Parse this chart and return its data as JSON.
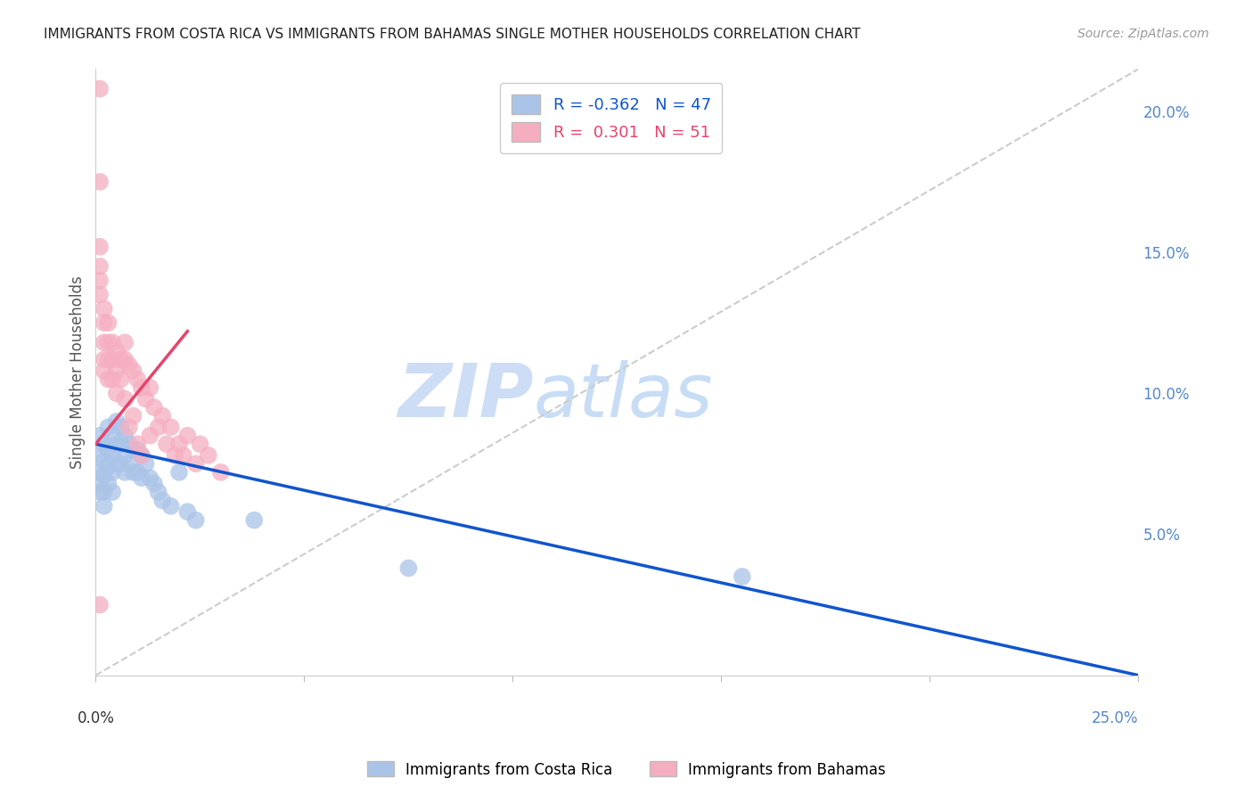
{
  "title": "IMMIGRANTS FROM COSTA RICA VS IMMIGRANTS FROM BAHAMAS SINGLE MOTHER HOUSEHOLDS CORRELATION CHART",
  "source": "Source: ZipAtlas.com",
  "ylabel": "Single Mother Households",
  "ylabel_right_ticks": [
    "20.0%",
    "15.0%",
    "10.0%",
    "5.0%"
  ],
  "ylabel_right_vals": [
    0.2,
    0.15,
    0.1,
    0.05
  ],
  "xlim": [
    0.0,
    0.25
  ],
  "ylim": [
    0.0,
    0.215
  ],
  "legend_blue_R": "-0.362",
  "legend_blue_N": "47",
  "legend_pink_R": "0.301",
  "legend_pink_N": "51",
  "blue_color": "#aac4e8",
  "pink_color": "#f5aec0",
  "blue_line_color": "#1155cc",
  "pink_line_color": "#e8436a",
  "diagonal_color": "#cccccc",
  "watermark_zip": "ZIP",
  "watermark_atlas": "atlas",
  "costa_rica_x": [
    0.001,
    0.001,
    0.001,
    0.001,
    0.001,
    0.002,
    0.002,
    0.002,
    0.002,
    0.002,
    0.003,
    0.003,
    0.003,
    0.003,
    0.004,
    0.004,
    0.004,
    0.004,
    0.005,
    0.005,
    0.005,
    0.006,
    0.006,
    0.006,
    0.007,
    0.007,
    0.007,
    0.008,
    0.008,
    0.009,
    0.009,
    0.01,
    0.01,
    0.011,
    0.011,
    0.012,
    0.013,
    0.014,
    0.015,
    0.016,
    0.018,
    0.02,
    0.022,
    0.024,
    0.038,
    0.075,
    0.155
  ],
  "costa_rica_y": [
    0.085,
    0.078,
    0.072,
    0.068,
    0.065,
    0.082,
    0.076,
    0.071,
    0.065,
    0.06,
    0.088,
    0.08,
    0.074,
    0.068,
    0.085,
    0.078,
    0.072,
    0.065,
    0.09,
    0.082,
    0.075,
    0.088,
    0.082,
    0.075,
    0.085,
    0.078,
    0.072,
    0.082,
    0.075,
    0.08,
    0.072,
    0.08,
    0.072,
    0.078,
    0.07,
    0.075,
    0.07,
    0.068,
    0.065,
    0.062,
    0.06,
    0.072,
    0.058,
    0.055,
    0.055,
    0.038,
    0.035
  ],
  "bahamas_x": [
    0.001,
    0.001,
    0.001,
    0.001,
    0.001,
    0.001,
    0.002,
    0.002,
    0.002,
    0.002,
    0.002,
    0.003,
    0.003,
    0.003,
    0.003,
    0.004,
    0.004,
    0.004,
    0.005,
    0.005,
    0.005,
    0.006,
    0.006,
    0.007,
    0.007,
    0.007,
    0.008,
    0.008,
    0.009,
    0.009,
    0.01,
    0.01,
    0.011,
    0.011,
    0.012,
    0.013,
    0.013,
    0.014,
    0.015,
    0.016,
    0.017,
    0.018,
    0.019,
    0.02,
    0.021,
    0.022,
    0.024,
    0.025,
    0.027,
    0.03,
    0.001
  ],
  "bahamas_y": [
    0.208,
    0.175,
    0.152,
    0.145,
    0.14,
    0.135,
    0.13,
    0.125,
    0.118,
    0.112,
    0.108,
    0.125,
    0.118,
    0.112,
    0.105,
    0.118,
    0.112,
    0.105,
    0.115,
    0.108,
    0.1,
    0.112,
    0.105,
    0.118,
    0.112,
    0.098,
    0.11,
    0.088,
    0.108,
    0.092,
    0.105,
    0.082,
    0.102,
    0.078,
    0.098,
    0.102,
    0.085,
    0.095,
    0.088,
    0.092,
    0.082,
    0.088,
    0.078,
    0.082,
    0.078,
    0.085,
    0.075,
    0.082,
    0.078,
    0.072,
    0.025
  ],
  "blue_trend_x": [
    0.0,
    0.25
  ],
  "blue_trend_y": [
    0.082,
    0.0
  ],
  "pink_trend_x": [
    0.0,
    0.022
  ],
  "pink_trend_y": [
    0.082,
    0.122
  ]
}
